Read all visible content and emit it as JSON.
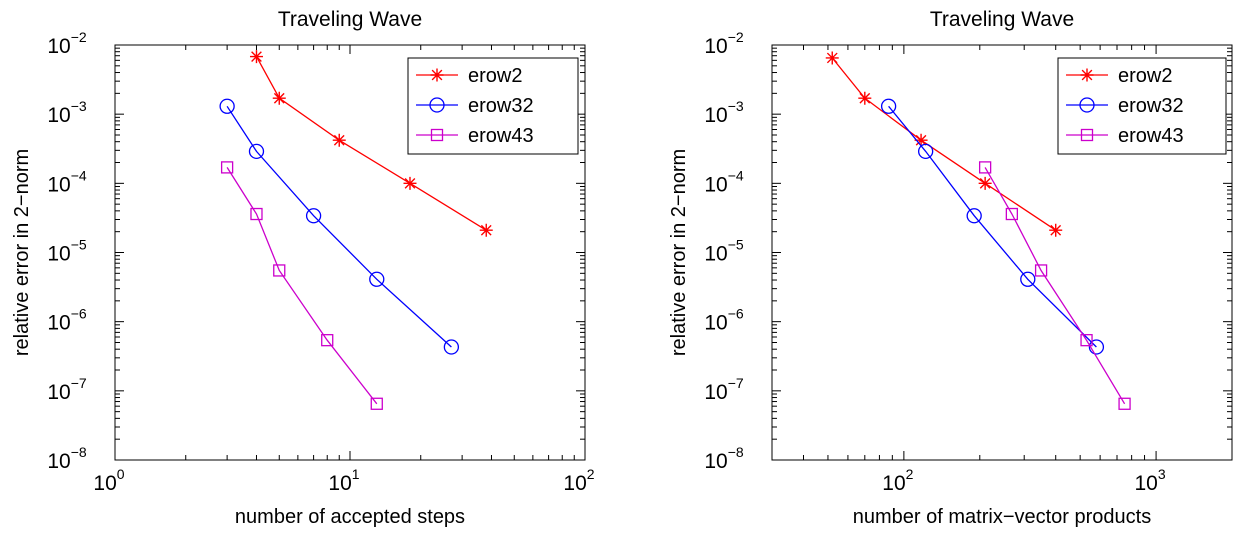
{
  "chart_data": [
    {
      "type": "line",
      "title": "Traveling Wave",
      "xlabel": "number of accepted steps",
      "ylabel": "relative error in 2−norm",
      "xscale": "log",
      "yscale": "log",
      "xlim": [
        1,
        100
      ],
      "ylim": [
        1e-08,
        0.01
      ],
      "x_ticks": [
        {
          "base": "10",
          "exp": "0",
          "value": 1
        },
        {
          "base": "10",
          "exp": "1",
          "value": 10
        },
        {
          "base": "10",
          "exp": "2",
          "value": 100
        }
      ],
      "y_ticks": [
        {
          "base": "10",
          "exp": "−2",
          "value": 0.01
        },
        {
          "base": "10",
          "exp": "−3",
          "value": 0.001
        },
        {
          "base": "10",
          "exp": "−4",
          "value": 0.0001
        },
        {
          "base": "10",
          "exp": "−5",
          "value": 1e-05
        },
        {
          "base": "10",
          "exp": "−6",
          "value": 1e-06
        },
        {
          "base": "10",
          "exp": "−7",
          "value": 1e-07
        },
        {
          "base": "10",
          "exp": "−8",
          "value": 1e-08
        }
      ],
      "grid": false,
      "legend_position": "top-right",
      "series": [
        {
          "name": "erow2",
          "color": "#ff0000",
          "marker": "asterisk",
          "x": [
            4,
            5,
            9,
            18,
            38
          ],
          "y": [
            0.0068,
            0.0017,
            0.00042,
            0.0001,
            2.1e-05
          ]
        },
        {
          "name": "erow32",
          "color": "#0000ff",
          "marker": "circle",
          "x": [
            3,
            4,
            7,
            13,
            27
          ],
          "y": [
            0.0013,
            0.00029,
            3.4e-05,
            4.1e-06,
            4.3e-07
          ]
        },
        {
          "name": "erow43",
          "color": "#cc00cc",
          "marker": "square",
          "x": [
            3,
            4,
            5,
            8,
            13
          ],
          "y": [
            0.00017,
            3.6e-05,
            5.5e-06,
            5.4e-07,
            6.5e-08
          ]
        }
      ]
    },
    {
      "type": "line",
      "title": "Traveling Wave",
      "xlabel": "number of matrix−vector products",
      "ylabel": "relative error in 2−norm",
      "xscale": "log",
      "yscale": "log",
      "xlim": [
        30,
        2000
      ],
      "ylim": [
        1e-08,
        0.01
      ],
      "x_ticks": [
        {
          "base": "10",
          "exp": "2",
          "value": 100
        },
        {
          "base": "10",
          "exp": "3",
          "value": 1000
        }
      ],
      "y_ticks": [
        {
          "base": "10",
          "exp": "−2",
          "value": 0.01
        },
        {
          "base": "10",
          "exp": "−3",
          "value": 0.001
        },
        {
          "base": "10",
          "exp": "−4",
          "value": 0.0001
        },
        {
          "base": "10",
          "exp": "−5",
          "value": 1e-05
        },
        {
          "base": "10",
          "exp": "−6",
          "value": 1e-06
        },
        {
          "base": "10",
          "exp": "−7",
          "value": 1e-07
        },
        {
          "base": "10",
          "exp": "−8",
          "value": 1e-08
        }
      ],
      "grid": false,
      "legend_position": "top-right",
      "series": [
        {
          "name": "erow2",
          "color": "#ff0000",
          "marker": "asterisk",
          "x": [
            52,
            70,
            117,
            210,
            400
          ],
          "y": [
            0.0065,
            0.0017,
            0.00042,
            0.0001,
            2.1e-05
          ]
        },
        {
          "name": "erow32",
          "color": "#0000ff",
          "marker": "circle",
          "x": [
            87,
            122,
            190,
            310,
            580
          ],
          "y": [
            0.0013,
            0.00029,
            3.4e-05,
            4.1e-06,
            4.3e-07
          ]
        },
        {
          "name": "erow43",
          "color": "#cc00cc",
          "marker": "square",
          "x": [
            210,
            268,
            350,
            530,
            750
          ],
          "y": [
            0.00017,
            3.6e-05,
            5.5e-06,
            5.4e-07,
            6.5e-08
          ]
        }
      ]
    }
  ]
}
